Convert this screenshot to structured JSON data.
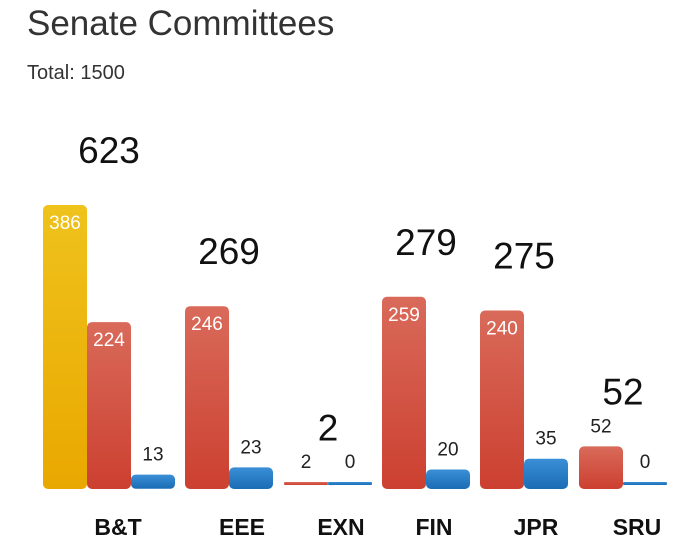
{
  "chart_data": {
    "type": "bar",
    "title": "Senate Committees",
    "subtitle": "Total: 1500",
    "categories": [
      "B&T",
      "EEE",
      "EXN",
      "FIN",
      "JPR",
      "SRU"
    ],
    "totals": [
      623,
      269,
      2,
      279,
      275,
      52
    ],
    "series": [
      {
        "values": [
          386,
          null,
          null,
          null,
          null,
          null
        ],
        "color": "#e8b00c"
      },
      {
        "values": [
          224,
          246,
          2,
          259,
          240,
          52
        ],
        "color": "#d2513e"
      },
      {
        "values": [
          13,
          23,
          0,
          20,
          35,
          0
        ],
        "color": "#2379c5"
      }
    ],
    "ylim": [
      0,
      400
    ],
    "grid": false,
    "legend": "none"
  }
}
